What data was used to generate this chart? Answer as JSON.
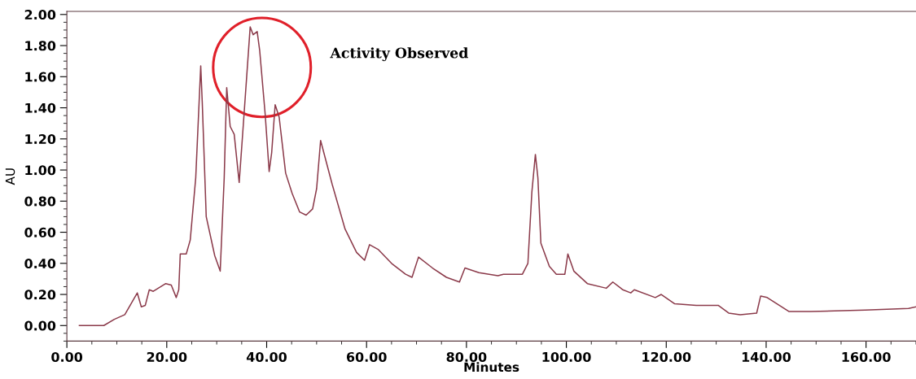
{
  "chart_data": {
    "type": "line",
    "xlabel": "Minutes",
    "ylabel": "AU",
    "annotations": [
      "Activity Observed"
    ],
    "x": [
      2.5,
      7.4,
      9.5,
      11.6,
      14.1,
      14.9,
      15.7,
      16.5,
      17.3,
      19.8,
      20.9,
      21.9,
      22.4,
      22.7,
      23.9,
      24.7,
      25.8,
      26.8,
      27.1,
      27.9,
      29.6,
      30.7,
      31.5,
      32.0,
      32.7,
      33.5,
      34.5,
      35.3,
      36.7,
      37.3,
      38.1,
      38.6,
      39.7,
      40.5,
      41.0,
      41.7,
      42.5,
      43.8,
      45.1,
      46.6,
      47.9,
      49.2,
      50.0,
      50.8,
      53.1,
      55.7,
      58.0,
      59.6,
      60.6,
      62.3,
      65.0,
      67.8,
      69.1,
      70.4,
      73.2,
      76.0,
      78.6,
      79.7,
      82.5,
      86.3,
      87.4,
      91.2,
      92.3,
      93.1,
      93.8,
      94.3,
      94.9,
      96.6,
      98.0,
      99.7,
      100.3,
      101.5,
      104.2,
      108.0,
      109.3,
      111.3,
      112.9,
      113.6,
      117.8,
      119.0,
      121.7,
      126.0,
      130.4,
      132.5,
      134.8,
      138.1,
      138.9,
      140.2,
      144.6,
      148.9,
      159.8,
      168.5,
      170.0
    ],
    "series": [
      {
        "color": "#8b3a4a",
        "values": [
          0.0,
          0.0,
          0.04,
          0.07,
          0.21,
          0.12,
          0.13,
          0.23,
          0.22,
          0.27,
          0.26,
          0.18,
          0.23,
          0.46,
          0.46,
          0.55,
          0.95,
          1.67,
          1.44,
          0.7,
          0.45,
          0.35,
          0.95,
          1.53,
          1.28,
          1.23,
          0.92,
          1.28,
          1.92,
          1.87,
          1.89,
          1.77,
          1.36,
          0.99,
          1.11,
          1.42,
          1.34,
          0.98,
          0.85,
          0.73,
          0.71,
          0.75,
          0.88,
          1.19,
          0.91,
          0.62,
          0.47,
          0.42,
          0.52,
          0.49,
          0.4,
          0.33,
          0.31,
          0.44,
          0.37,
          0.31,
          0.28,
          0.37,
          0.34,
          0.32,
          0.33,
          0.33,
          0.4,
          0.86,
          1.1,
          0.95,
          0.53,
          0.38,
          0.33,
          0.33,
          0.46,
          0.35,
          0.27,
          0.24,
          0.28,
          0.23,
          0.21,
          0.23,
          0.18,
          0.2,
          0.14,
          0.13,
          0.13,
          0.08,
          0.07,
          0.08,
          0.19,
          0.18,
          0.09,
          0.09,
          0.1,
          0.11,
          0.12
        ]
      }
    ],
    "xlim": [
      0,
      170
    ],
    "ylim": [
      -0.1,
      2.02
    ],
    "xticks": [
      {
        "value": 0,
        "label": "0.00"
      },
      {
        "value": 20,
        "label": "20.00"
      },
      {
        "value": 40,
        "label": "40.00"
      },
      {
        "value": 60,
        "label": "60.00"
      },
      {
        "value": 80,
        "label": "80.00"
      },
      {
        "value": 100,
        "label": "100.00"
      },
      {
        "value": 120,
        "label": "120.00"
      },
      {
        "value": 140,
        "label": "140.00"
      },
      {
        "value": 160,
        "label": "160.00"
      }
    ],
    "yticks": [
      {
        "value": 0,
        "label": "0.00"
      },
      {
        "value": 0.2,
        "label": "0.20"
      },
      {
        "value": 0.4,
        "label": "0.40"
      },
      {
        "value": 0.6,
        "label": "0.60"
      },
      {
        "value": 0.8,
        "label": "0.80"
      },
      {
        "value": 1.0,
        "label": "1.00"
      },
      {
        "value": 1.2,
        "label": "1.20"
      },
      {
        "value": 1.4,
        "label": "1.40"
      },
      {
        "value": 1.6,
        "label": "1.60"
      },
      {
        "value": 1.8,
        "label": "1.80"
      },
      {
        "value": 2.0,
        "label": "2.00"
      }
    ],
    "marker": "none",
    "line_style": "solid"
  }
}
